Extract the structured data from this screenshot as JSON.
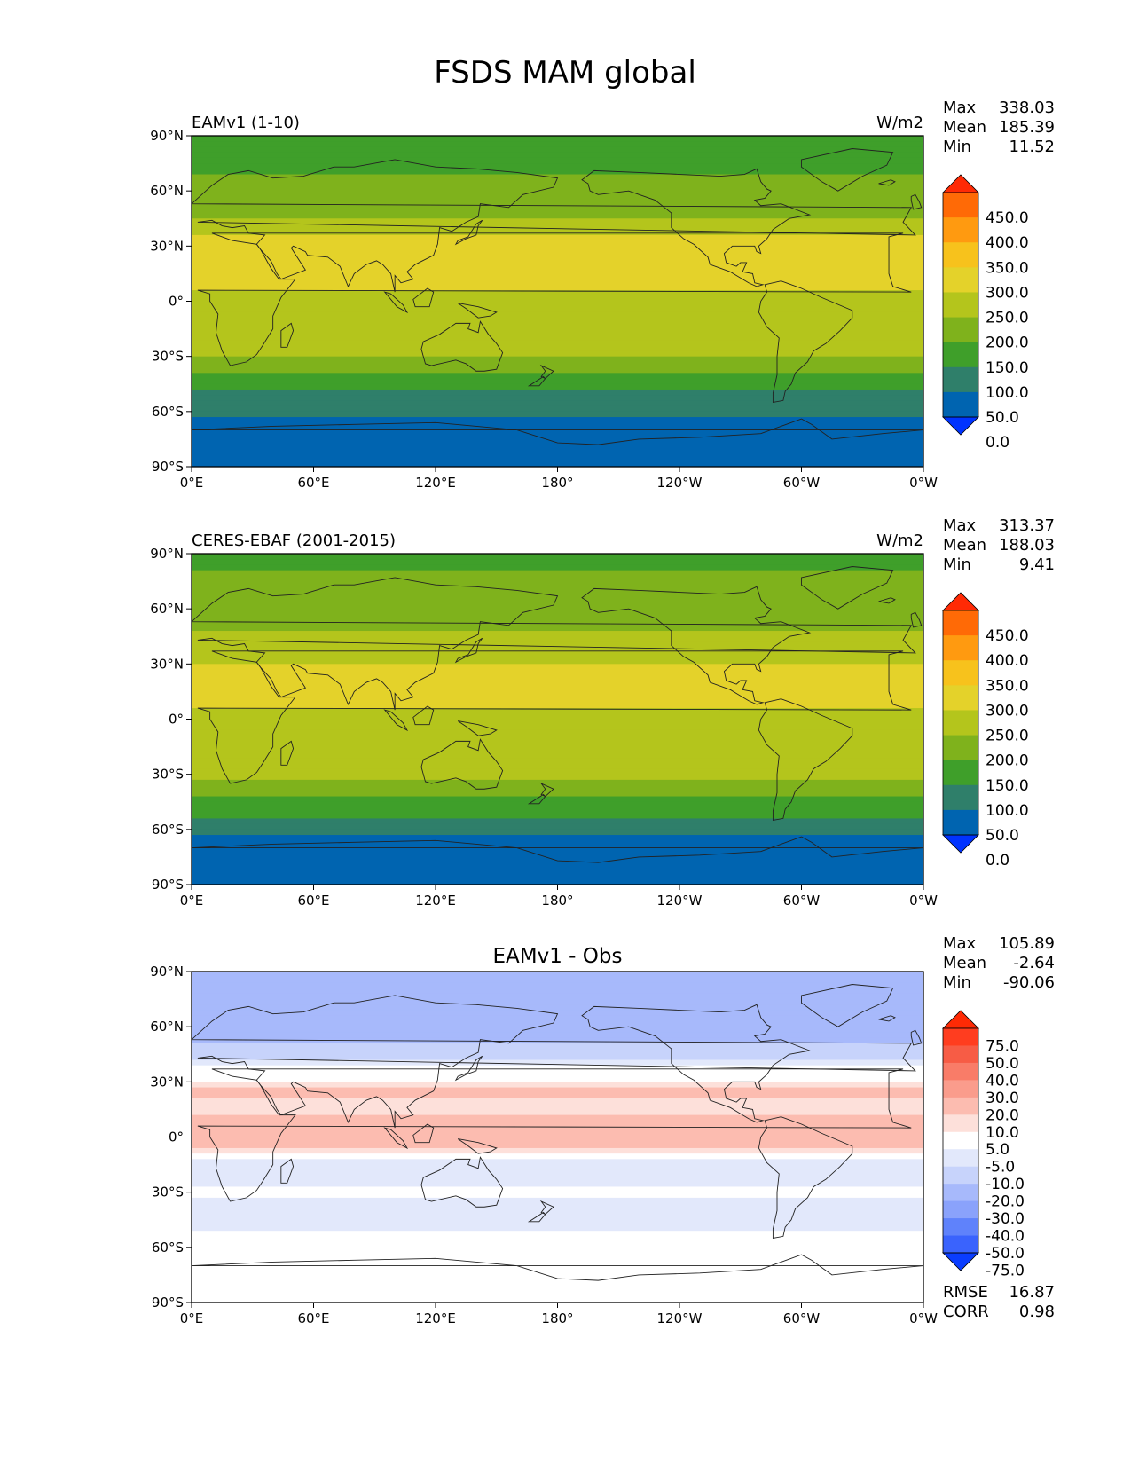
{
  "title": "FSDS MAM global",
  "colors": {
    "frame": "#000000",
    "coast": "#222222"
  },
  "chart_data": [
    {
      "type": "heatmap",
      "id": "model",
      "title_left": "EAMv1 (1-10)",
      "title_right": "W/m2",
      "xlabel": "",
      "ylabel": "",
      "x_ticks": [
        "0°E",
        "60°E",
        "120°E",
        "180°",
        "120°W",
        "60°W",
        "0°W"
      ],
      "y_ticks": [
        "90°N",
        "60°N",
        "30°N",
        "0°",
        "30°S",
        "60°S",
        "90°S"
      ],
      "stats": [
        {
          "label": "Max",
          "value": "338.03"
        },
        {
          "label": "Mean",
          "value": "185.39"
        },
        {
          "label": "Min",
          "value": "11.52"
        }
      ],
      "colorbar": {
        "labels": [
          "450.0",
          "400.0",
          "350.0",
          "300.0",
          "250.0",
          "200.0",
          "150.0",
          "100.0",
          "50.0",
          "0.0"
        ],
        "colors": [
          "#ff2a05",
          "#ff6a06",
          "#ff9a10",
          "#f7c21c",
          "#e4d22a",
          "#b4c51c",
          "#7fb21c",
          "#3f9f2a",
          "#2f7f6a",
          "#0064b0",
          "#0033ff"
        ]
      },
      "bands": [
        {
          "lat": 90,
          "value": 140
        },
        {
          "lat": 70,
          "value": 150
        },
        {
          "lat": 55,
          "value": 170
        },
        {
          "lat": 45,
          "value": 200
        },
        {
          "lat": 35,
          "value": 250
        },
        {
          "lat": 25,
          "value": 285
        },
        {
          "lat": 10,
          "value": 255
        },
        {
          "lat": 0,
          "value": 235
        },
        {
          "lat": -10,
          "value": 245
        },
        {
          "lat": -25,
          "value": 230
        },
        {
          "lat": -35,
          "value": 175
        },
        {
          "lat": -45,
          "value": 110
        },
        {
          "lat": -55,
          "value": 80
        },
        {
          "lat": -65,
          "value": 40
        },
        {
          "lat": -90,
          "value": 20
        }
      ]
    },
    {
      "type": "heatmap",
      "id": "obs",
      "title_left": "CERES-EBAF (2001-2015)",
      "title_right": "W/m2",
      "xlabel": "",
      "ylabel": "",
      "x_ticks": [
        "0°E",
        "60°E",
        "120°E",
        "180°",
        "120°W",
        "60°W",
        "0°W"
      ],
      "y_ticks": [
        "90°N",
        "60°N",
        "30°N",
        "0°",
        "30°S",
        "60°S",
        "90°S"
      ],
      "stats": [
        {
          "label": "Max",
          "value": "313.37"
        },
        {
          "label": "Mean",
          "value": "188.03"
        },
        {
          "label": "Min",
          "value": "9.41"
        }
      ],
      "colorbar": {
        "labels": [
          "450.0",
          "400.0",
          "350.0",
          "300.0",
          "250.0",
          "200.0",
          "150.0",
          "100.0",
          "50.0",
          "0.0"
        ],
        "colors": [
          "#ff2a05",
          "#ff6a06",
          "#ff9a10",
          "#f7c21c",
          "#e4d22a",
          "#b4c51c",
          "#7fb21c",
          "#3f9f2a",
          "#2f7f6a",
          "#0064b0",
          "#0033ff"
        ]
      },
      "bands": [
        {
          "lat": 90,
          "value": 140
        },
        {
          "lat": 70,
          "value": 160
        },
        {
          "lat": 55,
          "value": 185
        },
        {
          "lat": 45,
          "value": 205
        },
        {
          "lat": 35,
          "value": 235
        },
        {
          "lat": 25,
          "value": 270
        },
        {
          "lat": 10,
          "value": 260
        },
        {
          "lat": 0,
          "value": 240
        },
        {
          "lat": -10,
          "value": 245
        },
        {
          "lat": -25,
          "value": 235
        },
        {
          "lat": -35,
          "value": 190
        },
        {
          "lat": -45,
          "value": 140
        },
        {
          "lat": -55,
          "value": 90
        },
        {
          "lat": -65,
          "value": 40
        },
        {
          "lat": -90,
          "value": 20
        }
      ]
    },
    {
      "type": "heatmap",
      "id": "diff",
      "title_center": "EAMv1 - Obs",
      "xlabel": "",
      "ylabel": "",
      "x_ticks": [
        "0°E",
        "60°E",
        "120°E",
        "180°",
        "120°W",
        "60°W",
        "0°W"
      ],
      "y_ticks": [
        "90°N",
        "60°N",
        "30°N",
        "0°",
        "30°S",
        "60°S",
        "90°S"
      ],
      "stats": [
        {
          "label": "Max",
          "value": "105.89"
        },
        {
          "label": "Mean",
          "value": "-2.64"
        },
        {
          "label": "Min",
          "value": "-90.06"
        }
      ],
      "bottom_stats": [
        {
          "label": "RMSE",
          "value": "16.87"
        },
        {
          "label": "CORR",
          "value": "0.98"
        }
      ],
      "colorbar": {
        "labels": [
          "75.0",
          "50.0",
          "40.0",
          "30.0",
          "20.0",
          "10.0",
          "5.0",
          "-5.0",
          "-10.0",
          "-20.0",
          "-30.0",
          "-40.0",
          "-50.0",
          "-75.0"
        ],
        "colors": [
          "#ff2a05",
          "#ff3d1f",
          "#f75c45",
          "#f97c68",
          "#fa9c8c",
          "#fcbcb0",
          "#fde0da",
          "#ffffff",
          "#e2e8fb",
          "#c7d3fb",
          "#a7b9fb",
          "#8aa2fb",
          "#5f82fb",
          "#3a63fd",
          "#0a3dff"
        ]
      },
      "bands": [
        {
          "lat": 90,
          "value": -20
        },
        {
          "lat": 65,
          "value": -30
        },
        {
          "lat": 50,
          "value": -20
        },
        {
          "lat": 38,
          "value": -5
        },
        {
          "lat": 25,
          "value": 12
        },
        {
          "lat": 15,
          "value": 8
        },
        {
          "lat": 5,
          "value": 20
        },
        {
          "lat": -5,
          "value": 10
        },
        {
          "lat": -15,
          "value": -8
        },
        {
          "lat": -30,
          "value": -4
        },
        {
          "lat": -45,
          "value": -10
        },
        {
          "lat": -60,
          "value": 0
        },
        {
          "lat": -90,
          "value": 0
        }
      ]
    }
  ]
}
